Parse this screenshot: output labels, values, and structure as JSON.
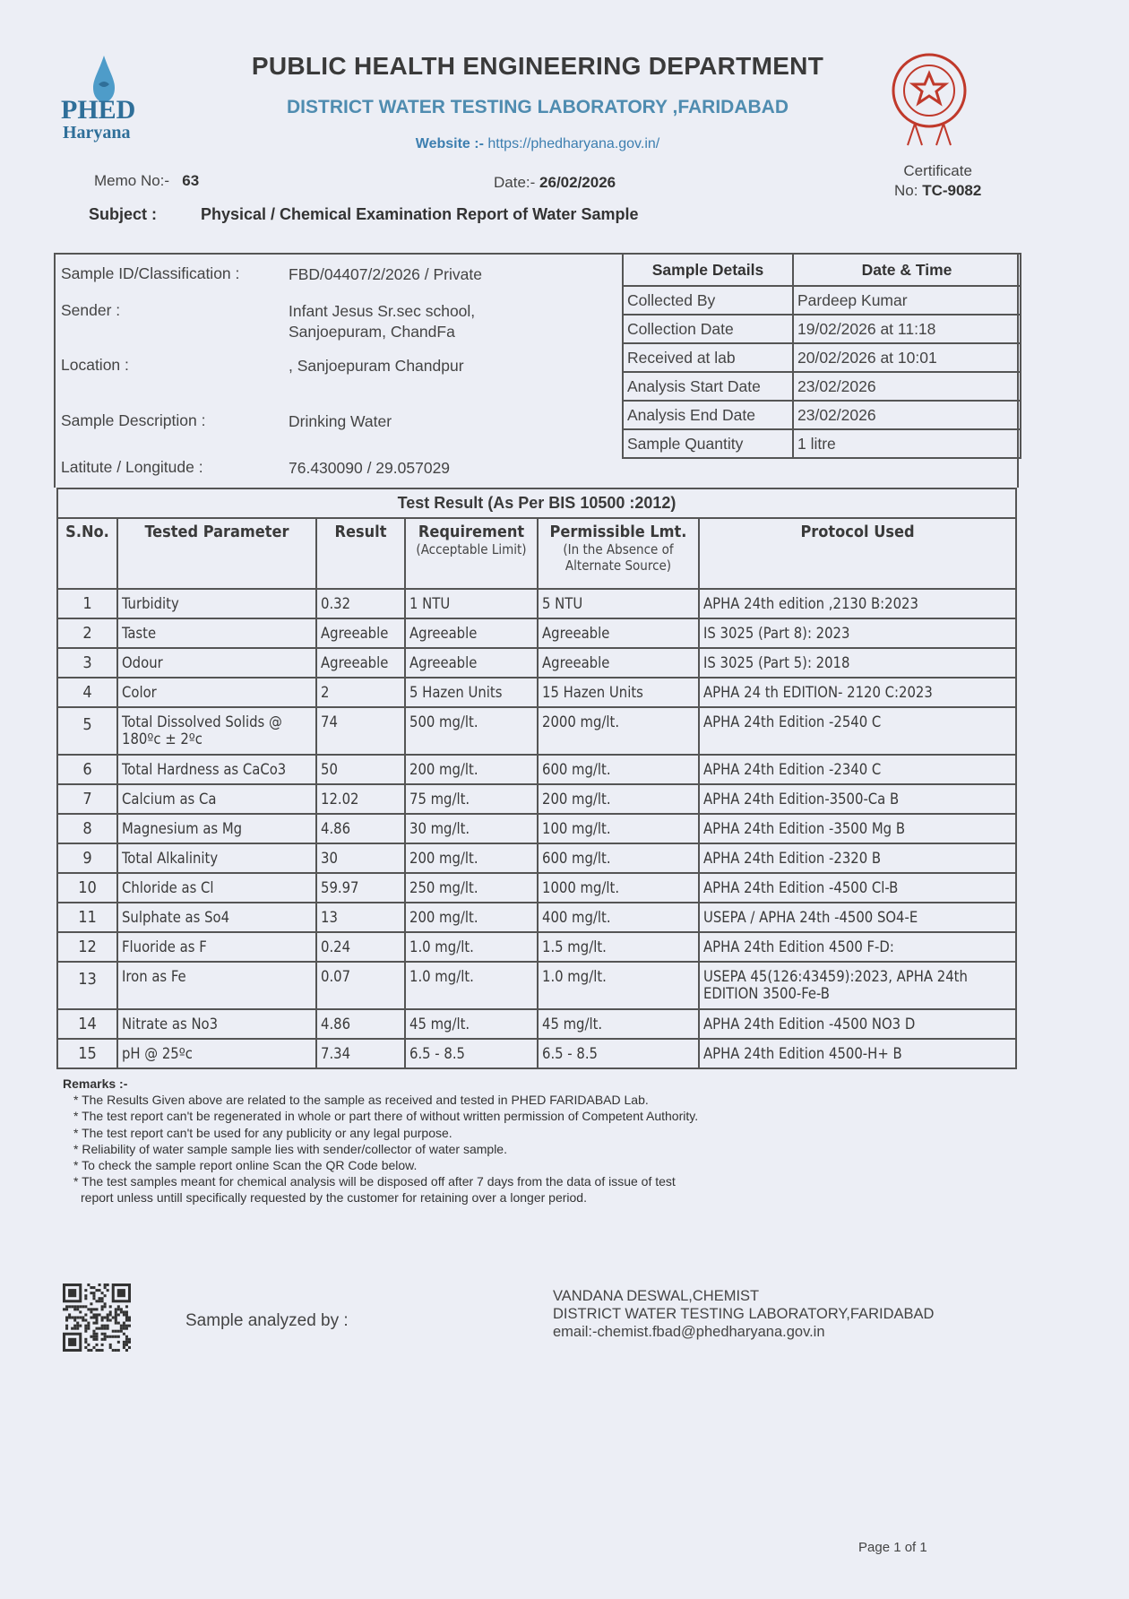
{
  "header": {
    "department": "PUBLIC HEALTH ENGINEERING DEPARTMENT",
    "lab": "DISTRICT WATER TESTING LABORATORY ,FARIDABAD",
    "website_label": "Website :-",
    "website_url": "https://phedharyana.gov.in/",
    "logo_text": [
      "PHED",
      "Haryana"
    ]
  },
  "memo": {
    "label": "Memo No:-",
    "value": "63"
  },
  "date": {
    "label": "Date:-",
    "value": "26/02/2026"
  },
  "certificate": {
    "label_line1": "Certificate",
    "label_line2": "No:",
    "value": "TC-9082"
  },
  "subject": {
    "label": "Subject :",
    "value": "Physical / Chemical Examination Report of Water Sample"
  },
  "info": {
    "sample_id_label": "Sample ID/Classification :",
    "sample_id": "FBD/04407/2/2026  / Private",
    "sender_label": "Sender :",
    "sender_line1": "Infant Jesus Sr.sec school,",
    "sender_line2": "Sanjoepuram, ChandFa",
    "location_label": "Location :",
    "location": ", Sanjoepuram Chandpur",
    "description_label": "Sample Description :",
    "description": "Drinking Water",
    "latlong_label": "Latitute / Longitude :",
    "latlong": "76.430090 / 29.057029"
  },
  "sample_details": {
    "headers": [
      "Sample Details",
      "Date & Time"
    ],
    "rows": [
      [
        "Collected By",
        "Pardeep Kumar"
      ],
      [
        "Collection Date",
        "19/02/2026 at 11:18"
      ],
      [
        "Received at lab",
        "20/02/2026 at 10:01"
      ],
      [
        "Analysis Start Date",
        "23/02/2026"
      ],
      [
        "Analysis End Date",
        "23/02/2026"
      ],
      [
        "Sample Quantity",
        "1 litre"
      ]
    ]
  },
  "test_result": {
    "title": "Test Result  (As Per BIS 10500 :2012)",
    "headers": {
      "sno": "S.No.",
      "param": "Tested Parameter",
      "result": "Result",
      "req": "Requirement",
      "req_sub": "(Acceptable Limit)",
      "perm": "Permissible Lmt.",
      "perm_sub": "(In the Absence of Alternate Source)",
      "protocol": "Protocol Used"
    },
    "rows": [
      [
        "1",
        "Turbidity",
        "0.32",
        "1 NTU",
        "5 NTU",
        "APHA 24th edition ,2130 B:2023"
      ],
      [
        "2",
        "Taste",
        "Agreeable",
        "Agreeable",
        "Agreeable",
        "IS 3025 (Part 8): 2023"
      ],
      [
        "3",
        "Odour",
        "Agreeable",
        "Agreeable",
        "Agreeable",
        "IS 3025 (Part 5): 2018"
      ],
      [
        "4",
        "Color",
        "2",
        "5 Hazen Units",
        "15 Hazen Units",
        "APHA 24 th EDITION- 2120 C:2023"
      ],
      [
        "5",
        "Total Dissolved Solids @ 180ºc ± 2ºc",
        "74",
        "500 mg/lt.",
        "2000 mg/lt.",
        "APHA 24th Edition -2540 C"
      ],
      [
        "6",
        "Total Hardness as CaCo3",
        "50",
        "200 mg/lt.",
        "600 mg/lt.",
        "APHA 24th  Edition -2340 C"
      ],
      [
        "7",
        "Calcium as Ca",
        "12.02",
        "75 mg/lt.",
        "200 mg/lt.",
        "APHA 24th Edition-3500-Ca B"
      ],
      [
        "8",
        "Magnesium as Mg",
        "4.86",
        "30 mg/lt.",
        "100 mg/lt.",
        "APHA 24th Edition -3500 Mg B"
      ],
      [
        "9",
        "Total Alkalinity",
        "30",
        "200 mg/lt.",
        "600 mg/lt.",
        "APHA 24th  Edition -2320 B"
      ],
      [
        "10",
        "Chloride as Cl",
        "59.97",
        "250 mg/lt.",
        "1000 mg/lt.",
        "APHA 24th Edition -4500 Cl-B"
      ],
      [
        "11",
        "Sulphate as So4",
        "13",
        "200 mg/lt.",
        "400 mg/lt.",
        "USEPA / APHA 24th -4500 SO4-E"
      ],
      [
        "12",
        "Fluoride as F",
        "0.24",
        "1.0 mg/lt.",
        "1.5 mg/lt.",
        "APHA 24th Edition 4500 F-D:"
      ],
      [
        "13",
        "Iron as Fe",
        "0.07",
        "1.0 mg/lt.",
        "1.0 mg/lt.",
        "USEPA 45(126:43459):2023, APHA 24th EDITION 3500-Fe-B"
      ],
      [
        "14",
        "Nitrate as No3",
        "4.86",
        "45 mg/lt.",
        "45 mg/lt.",
        "APHA 24th  Edition -4500  NO3 D"
      ],
      [
        "15",
        "pH @ 25ºc",
        "7.34",
        "6.5 - 8.5",
        "6.5 - 8.5",
        "APHA 24th  Edition 4500-H+ B"
      ]
    ]
  },
  "remarks": {
    "title": "Remarks :-",
    "items": [
      "* The Results Given above are related to the sample as received and tested in PHED FARIDABAD   Lab.",
      "* The test report can't be regenerated in whole or part there of without written permission of  Competent Authority.",
      "* The test report can't be used for any publicity or any legal purpose.",
      "* Reliability of water sample sample lies with sender/collector of water sample.",
      "* To check the sample report online Scan the QR Code below.",
      "* The test samples meant for chemical analysis will be disposed off after 7 days from the data of issue of test",
      "report unless untill specifically requested by the customer for retaining over a longer period."
    ]
  },
  "footer": {
    "analyzed_by_label": "Sample analyzed by :",
    "chemist_name": "VANDANA DESWAL,CHEMIST",
    "chemist_lab": "DISTRICT WATER TESTING LABORATORY,FARIDABAD",
    "chemist_email": "email:-chemist.fbad@phedharyana.gov.in",
    "page": "Page 1  of  1"
  },
  "colors": {
    "lab_blue": "#4f8cb0",
    "seal_red": "#c0392b",
    "border": "#555555"
  }
}
